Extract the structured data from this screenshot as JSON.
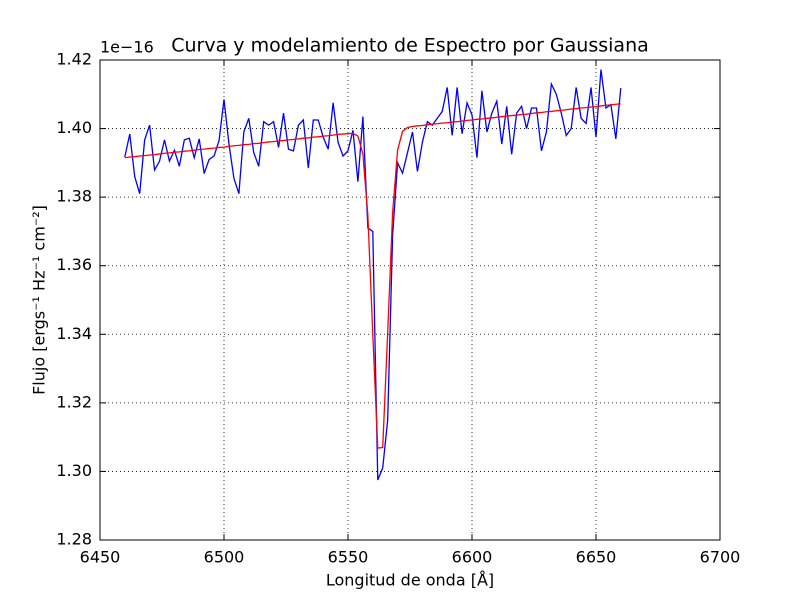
{
  "chart_data": {
    "type": "line",
    "title": "Curva y modelamiento de Espectro por Gaussiana",
    "x_label": "Longitud de onda [Å]",
    "y_label": "Flujo [ergs⁻¹ Hz⁻¹ cm⁻²]",
    "y_offset_label": "1e−16",
    "xlim": [
      6450,
      6700
    ],
    "ylim": [
      1.28,
      1.42
    ],
    "xticks": [
      6450,
      6500,
      6550,
      6600,
      6650,
      6700
    ],
    "yticks": [
      1.28,
      {
        "value": 1.3,
        "label": "1.30"
      },
      1.32,
      1.34,
      1.36,
      1.38,
      {
        "value": 1.4,
        "label": "1.40"
      },
      1.42
    ],
    "grid": true,
    "x": [
      6460,
      6462,
      6464,
      6466,
      6468,
      6470,
      6472,
      6474,
      6476,
      6478,
      6480,
      6482,
      6484,
      6486,
      6488,
      6490,
      6492,
      6494,
      6496,
      6498,
      6500,
      6502,
      6504,
      6506,
      6508,
      6510,
      6512,
      6514,
      6516,
      6518,
      6520,
      6522,
      6524,
      6526,
      6528,
      6530,
      6532,
      6534,
      6536,
      6538,
      6540,
      6542,
      6544,
      6546,
      6548,
      6550,
      6552,
      6554,
      6556,
      6558,
      6560,
      6562,
      6564,
      6566,
      6568,
      6570,
      6572,
      6574,
      6576,
      6578,
      6580,
      6582,
      6584,
      6586,
      6588,
      6590,
      6592,
      6594,
      6596,
      6598,
      6600,
      6602,
      6604,
      6606,
      6608,
      6610,
      6612,
      6614,
      6616,
      6618,
      6620,
      6622,
      6624,
      6626,
      6628,
      6630,
      6632,
      6634,
      6636,
      6638,
      6640,
      6642,
      6644,
      6646,
      6648,
      6650,
      6652,
      6654,
      6656,
      6658,
      6660
    ],
    "series": [
      {
        "color": "#0000ff",
        "values": [
          1.3917,
          1.3984,
          1.386,
          1.381,
          1.3967,
          1.401,
          1.3879,
          1.3905,
          1.3967,
          1.3905,
          1.3937,
          1.389,
          1.3967,
          1.3972,
          1.3915,
          1.397,
          1.3869,
          1.391,
          1.392,
          1.3965,
          1.4085,
          1.3955,
          1.3855,
          1.381,
          1.399,
          1.403,
          1.393,
          1.389,
          1.402,
          1.401,
          1.402,
          1.3945,
          1.4045,
          1.394,
          1.3935,
          1.401,
          1.4025,
          1.3885,
          1.4025,
          1.4025,
          1.3975,
          1.394,
          1.4075,
          1.396,
          1.392,
          1.3935,
          1.3995,
          1.3845,
          1.4035,
          1.371,
          1.37,
          1.2975,
          1.301,
          1.315,
          1.369,
          1.39,
          1.387,
          1.393,
          1.399,
          1.3875,
          1.396,
          1.402,
          1.401,
          1.403,
          1.405,
          1.412,
          1.398,
          1.412,
          1.3985,
          1.4075,
          1.404,
          1.3915,
          1.411,
          1.399,
          1.4045,
          1.408,
          1.3955,
          1.4065,
          1.3925,
          1.4045,
          1.4065,
          1.4,
          1.406,
          1.406,
          1.3935,
          1.399,
          1.413,
          1.41,
          1.4045,
          1.398,
          1.4,
          1.412,
          1.403,
          1.4015,
          1.412,
          1.3975,
          1.4172,
          1.406,
          1.407,
          1.397,
          1.4118
        ]
      },
      {
        "color": "#ff0000",
        "values": [
          1.3915,
          1.3917,
          1.3918,
          1.392,
          1.3921,
          1.3923,
          1.3924,
          1.3926,
          1.3928,
          1.3929,
          1.3931,
          1.3932,
          1.3934,
          1.3935,
          1.3937,
          1.3939,
          1.394,
          1.3942,
          1.3943,
          1.3945,
          1.3946,
          1.3948,
          1.395,
          1.3951,
          1.3953,
          1.3954,
          1.3956,
          1.3957,
          1.3959,
          1.3961,
          1.3962,
          1.3964,
          1.3965,
          1.3967,
          1.3968,
          1.397,
          1.3972,
          1.3973,
          1.3975,
          1.3976,
          1.3978,
          1.3979,
          1.3981,
          1.3983,
          1.3984,
          1.3985,
          1.3986,
          1.3978,
          1.3926,
          1.3748,
          1.3399,
          1.3068,
          1.307,
          1.3404,
          1.3756,
          1.3937,
          1.3992,
          1.4003,
          1.4006,
          1.4008,
          1.4009,
          1.4011,
          1.4013,
          1.4014,
          1.4016,
          1.4017,
          1.4019,
          1.402,
          1.4022,
          1.4024,
          1.4025,
          1.4027,
          1.4028,
          1.403,
          1.4031,
          1.4033,
          1.4035,
          1.4036,
          1.4038,
          1.4039,
          1.4041,
          1.4042,
          1.4044,
          1.4046,
          1.4047,
          1.4049,
          1.405,
          1.4052,
          1.4053,
          1.4055,
          1.4057,
          1.4058,
          1.406,
          1.4061,
          1.4063,
          1.4064,
          1.4066,
          1.4068,
          1.4069,
          1.4071,
          1.4072
        ]
      }
    ]
  }
}
